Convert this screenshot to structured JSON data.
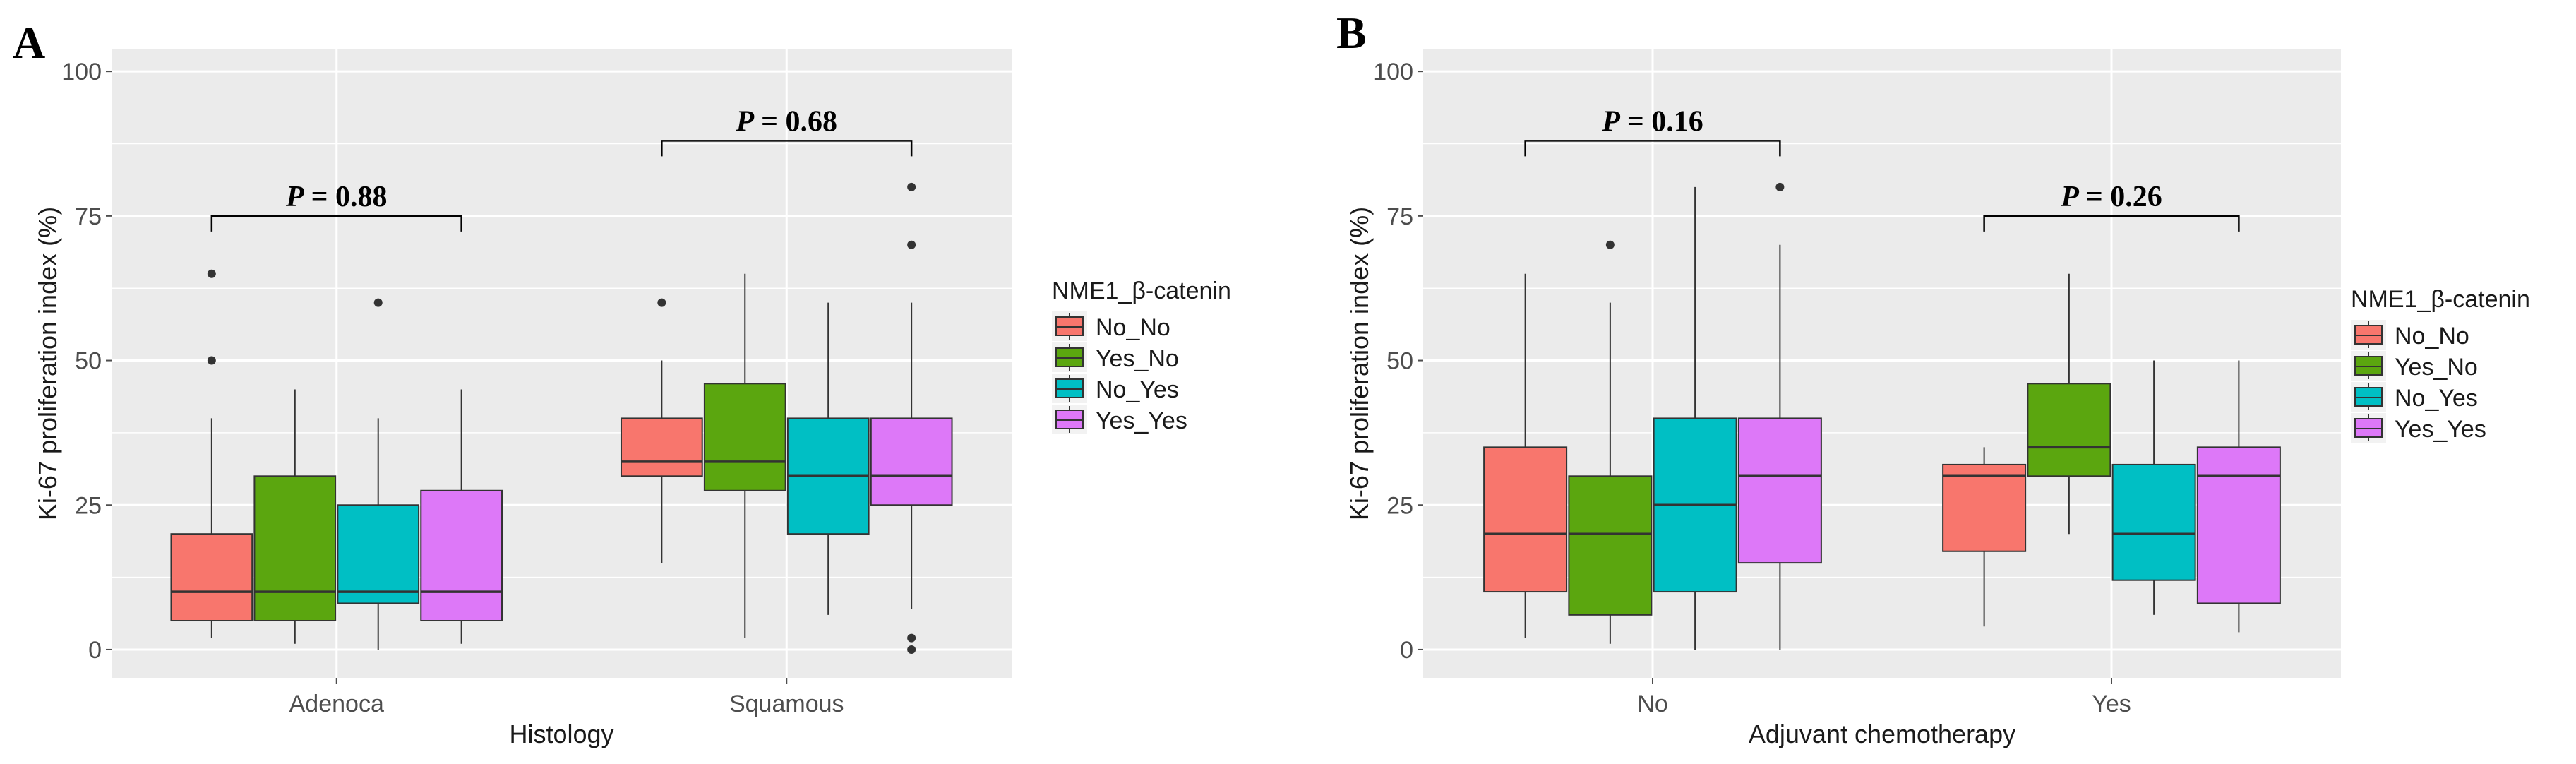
{
  "colors": {
    "panel_bg": "#EBEBEB",
    "grid": "#FFFFFF",
    "box_stroke": "#333333",
    "No_No": "#F8766D",
    "Yes_No": "#5BA60F",
    "No_Yes": "#00BFC4",
    "Yes_Yes": "#DD78F8"
  },
  "chart_data": [
    {
      "type": "box",
      "panel": "A",
      "xlabel": "Histology",
      "ylabel": "Ki-67 proliferation index (%)",
      "ylim": [
        0,
        100
      ],
      "yticks": [
        "0",
        "25",
        "50",
        "75",
        "100"
      ],
      "categories": [
        "Adenoca",
        "Squamous"
      ],
      "legend": {
        "title": "NME1_β-catenin",
        "entries": [
          "No_No",
          "Yes_No",
          "No_Yes",
          "Yes_Yes"
        ],
        "position": "right"
      },
      "groups": [
        {
          "category": "Adenoca",
          "boxes": [
            {
              "series": "No_No",
              "whisker_low": 2,
              "q1": 5,
              "median": 10,
              "q3": 20,
              "whisker_high": 40,
              "outliers": [
                50,
                65
              ]
            },
            {
              "series": "Yes_No",
              "whisker_low": 1,
              "q1": 5,
              "median": 10,
              "q3": 30,
              "whisker_high": 45,
              "outliers": []
            },
            {
              "series": "No_Yes",
              "whisker_low": 0,
              "q1": 8,
              "median": 10,
              "q3": 25,
              "whisker_high": 40,
              "outliers": [
                60
              ]
            },
            {
              "series": "Yes_Yes",
              "whisker_low": 1,
              "q1": 5,
              "median": 10,
              "q3": 27.5,
              "whisker_high": 45,
              "outliers": []
            }
          ],
          "annotation": {
            "text": "P",
            "value": "= 0.88",
            "bracket_y": 75
          }
        },
        {
          "category": "Squamous",
          "boxes": [
            {
              "series": "No_No",
              "whisker_low": 15,
              "q1": 30,
              "median": 32.5,
              "q3": 40,
              "whisker_high": 50,
              "outliers": [
                60
              ]
            },
            {
              "series": "Yes_No",
              "whisker_low": 2,
              "q1": 27.5,
              "median": 32.5,
              "q3": 46,
              "whisker_high": 65,
              "outliers": []
            },
            {
              "series": "No_Yes",
              "whisker_low": 6,
              "q1": 20,
              "median": 30,
              "q3": 40,
              "whisker_high": 60,
              "outliers": []
            },
            {
              "series": "Yes_Yes",
              "whisker_low": 7,
              "q1": 25,
              "median": 30,
              "q3": 40,
              "whisker_high": 60,
              "outliers": [
                0,
                2,
                70,
                80
              ]
            }
          ],
          "annotation": {
            "text": "P",
            "value": "= 0.68",
            "bracket_y": 88
          }
        }
      ]
    },
    {
      "type": "box",
      "panel": "B",
      "xlabel": "Adjuvant chemotherapy",
      "ylabel": "Ki-67 proliferation index (%)",
      "ylim": [
        0,
        100
      ],
      "yticks": [
        "0",
        "25",
        "50",
        "75",
        "100"
      ],
      "categories": [
        "No",
        "Yes"
      ],
      "legend": {
        "title": "NME1_β-catenin",
        "entries": [
          "No_No",
          "Yes_No",
          "No_Yes",
          "Yes_Yes"
        ],
        "position": "right"
      },
      "groups": [
        {
          "category": "No",
          "boxes": [
            {
              "series": "No_No",
              "whisker_low": 2,
              "q1": 10,
              "median": 20,
              "q3": 35,
              "whisker_high": 65,
              "outliers": []
            },
            {
              "series": "Yes_No",
              "whisker_low": 1,
              "q1": 6,
              "median": 20,
              "q3": 30,
              "whisker_high": 60,
              "outliers": [
                70
              ]
            },
            {
              "series": "No_Yes",
              "whisker_low": 0,
              "q1": 10,
              "median": 25,
              "q3": 40,
              "whisker_high": 80,
              "outliers": []
            },
            {
              "series": "Yes_Yes",
              "whisker_low": 0,
              "q1": 15,
              "median": 30,
              "q3": 40,
              "whisker_high": 70,
              "outliers": [
                80
              ]
            }
          ],
          "annotation": {
            "text": "P",
            "value": "= 0.16",
            "bracket_y": 88
          }
        },
        {
          "category": "Yes",
          "boxes": [
            {
              "series": "No_No",
              "whisker_low": 4,
              "q1": 17,
              "median": 30,
              "q3": 32,
              "whisker_high": 35,
              "outliers": []
            },
            {
              "series": "Yes_No",
              "whisker_low": 20,
              "q1": 30,
              "median": 35,
              "q3": 46,
              "whisker_high": 65,
              "outliers": []
            },
            {
              "series": "No_Yes",
              "whisker_low": 6,
              "q1": 12,
              "median": 20,
              "q3": 32,
              "whisker_high": 50,
              "outliers": []
            },
            {
              "series": "Yes_Yes",
              "whisker_low": 3,
              "q1": 8,
              "median": 30,
              "q3": 35,
              "whisker_high": 50,
              "outliers": []
            }
          ],
          "annotation": {
            "text": "P",
            "value": "= 0.26",
            "bracket_y": 75
          }
        }
      ]
    }
  ]
}
